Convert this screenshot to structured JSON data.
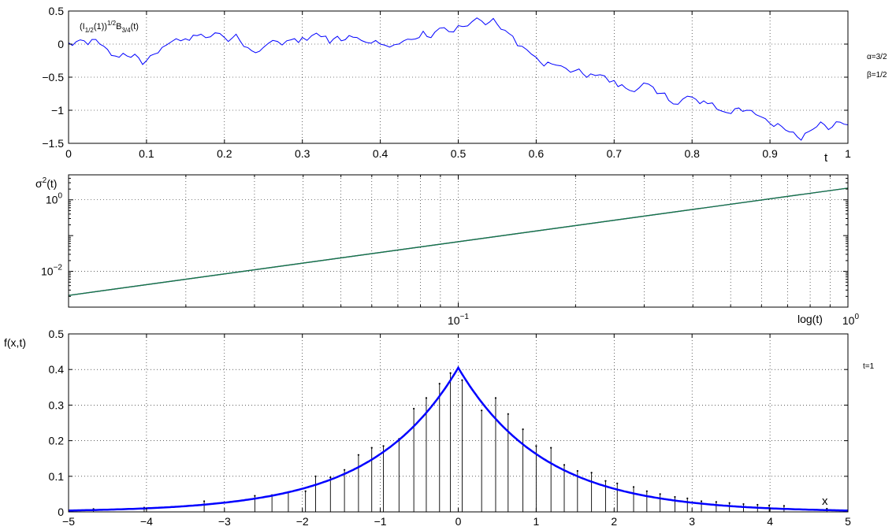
{
  "chart_data": [
    {
      "type": "line",
      "title": "",
      "annotation": "(I_{1/2}(1))^{1/2}B_{3/4}(t)",
      "annotation_parts": {
        "a": "(I",
        "b": "1/2",
        "c": "(1))",
        "d": "1/2",
        "e": "B",
        "f": "3/4",
        "g": "(t)"
      },
      "xlabel": "t",
      "ylabel": "",
      "xlim": [
        0,
        1
      ],
      "ylim": [
        -1.5,
        0.5
      ],
      "xticks": [
        "0",
        "0.1",
        "0.2",
        "0.3",
        "0.4",
        "0.5",
        "0.6",
        "0.7",
        "0.8",
        "0.9",
        "1"
      ],
      "yticks": [
        "0.5",
        "0",
        "−0.5",
        "−1",
        "−1.5"
      ],
      "grid": true,
      "side_labels": [
        "α=3/2",
        "β=1/2"
      ],
      "series": [
        {
          "color": "#0000ff",
          "x": [
            0,
            0.02,
            0.04,
            0.05,
            0.06,
            0.08,
            0.1,
            0.12,
            0.15,
            0.17,
            0.2,
            0.22,
            0.235,
            0.25,
            0.28,
            0.3,
            0.33,
            0.35,
            0.37,
            0.4,
            0.43,
            0.45,
            0.47,
            0.5,
            0.53,
            0.55,
            0.57,
            0.6,
            0.62,
            0.65,
            0.67,
            0.7,
            0.72,
            0.75,
            0.77,
            0.8,
            0.82,
            0.85,
            0.87,
            0.9,
            0.92,
            0.935,
            0.95,
            0.97,
            0.99,
            1.0
          ],
          "y": [
            0.02,
            0.05,
            0.0,
            -0.08,
            -0.18,
            -0.2,
            -0.25,
            -0.05,
            0.08,
            0.15,
            0.1,
            0.05,
            -0.1,
            -0.05,
            0.05,
            0.1,
            0.12,
            0.05,
            0.1,
            0.0,
            0.05,
            0.1,
            0.18,
            0.28,
            0.35,
            0.3,
            0.12,
            -0.2,
            -0.3,
            -0.4,
            -0.45,
            -0.55,
            -0.7,
            -0.65,
            -0.85,
            -0.8,
            -0.9,
            -1.05,
            -1.0,
            -1.2,
            -1.3,
            -1.4,
            -1.32,
            -1.22,
            -1.18,
            -1.22
          ]
        }
      ]
    },
    {
      "type": "line",
      "title": "",
      "xlabel": "log(t)",
      "ylabel": "σ²(t)",
      "ylabel_parts": {
        "a": "σ",
        "b": "2",
        "c": "(t)"
      },
      "xscale": "log",
      "yscale": "log",
      "xlim": [
        0.01,
        1
      ],
      "ylim": [
        0.001,
        5
      ],
      "xticks": [
        {
          "value": 0.1,
          "base": "10",
          "exp": "−1"
        },
        {
          "value": 1,
          "base": "10",
          "exp": "0"
        }
      ],
      "yticks": [
        {
          "value": 0.01,
          "base": "10",
          "exp": "−2"
        },
        {
          "value": 1,
          "base": "10",
          "exp": "0"
        }
      ],
      "grid": true,
      "series": [
        {
          "color": "#0000ff",
          "x": [
            0.01,
            1
          ],
          "y": [
            0.00213,
            2.13
          ]
        },
        {
          "color": "#1a7a3a",
          "x": [
            0.01,
            1
          ],
          "y": [
            0.00213,
            2.13
          ]
        }
      ]
    },
    {
      "type": "line",
      "title": "",
      "xlabel": "x",
      "ylabel": "f(x,t)",
      "xlim": [
        -5,
        5
      ],
      "ylim": [
        0,
        0.5
      ],
      "xticks": [
        "−5",
        "−4",
        "−3",
        "−2",
        "−1",
        "0",
        "1",
        "2",
        "3",
        "4",
        "5"
      ],
      "yticks": [
        "0.5",
        "0.4",
        "0.3",
        "0.2",
        "0.1",
        "0"
      ],
      "grid": true,
      "side_labels": [
        "t=1"
      ],
      "density": {
        "peak": 0.405,
        "center": 0,
        "decay": 1.05,
        "color": "#0000ff"
      },
      "stems": {
        "x": [
          -4.68,
          -4.03,
          -3.26,
          -2.61,
          -2.39,
          -2.18,
          -1.96,
          -1.83,
          -1.64,
          -1.46,
          -1.28,
          -1.11,
          -0.96,
          -0.76,
          -0.57,
          -0.41,
          -0.24,
          -0.1,
          0.05,
          0.3,
          0.48,
          0.64,
          0.83,
          1.0,
          1.19,
          1.36,
          1.53,
          1.71,
          1.89,
          2.04,
          2.25,
          2.42,
          2.59,
          2.78,
          2.94,
          3.12,
          3.31,
          3.48,
          3.66,
          3.84,
          3.99,
          4.18,
          4.73
        ],
        "y": [
          0.008,
          0.012,
          0.03,
          0.045,
          0.047,
          0.055,
          0.058,
          0.1,
          0.097,
          0.118,
          0.16,
          0.18,
          0.185,
          0.205,
          0.29,
          0.32,
          0.36,
          0.39,
          0.37,
          0.285,
          0.32,
          0.275,
          0.232,
          0.185,
          0.18,
          0.132,
          0.115,
          0.11,
          0.087,
          0.08,
          0.07,
          0.058,
          0.05,
          0.042,
          0.038,
          0.03,
          0.028,
          0.025,
          0.022,
          0.02,
          0.018,
          0.017,
          0.009
        ]
      }
    }
  ]
}
